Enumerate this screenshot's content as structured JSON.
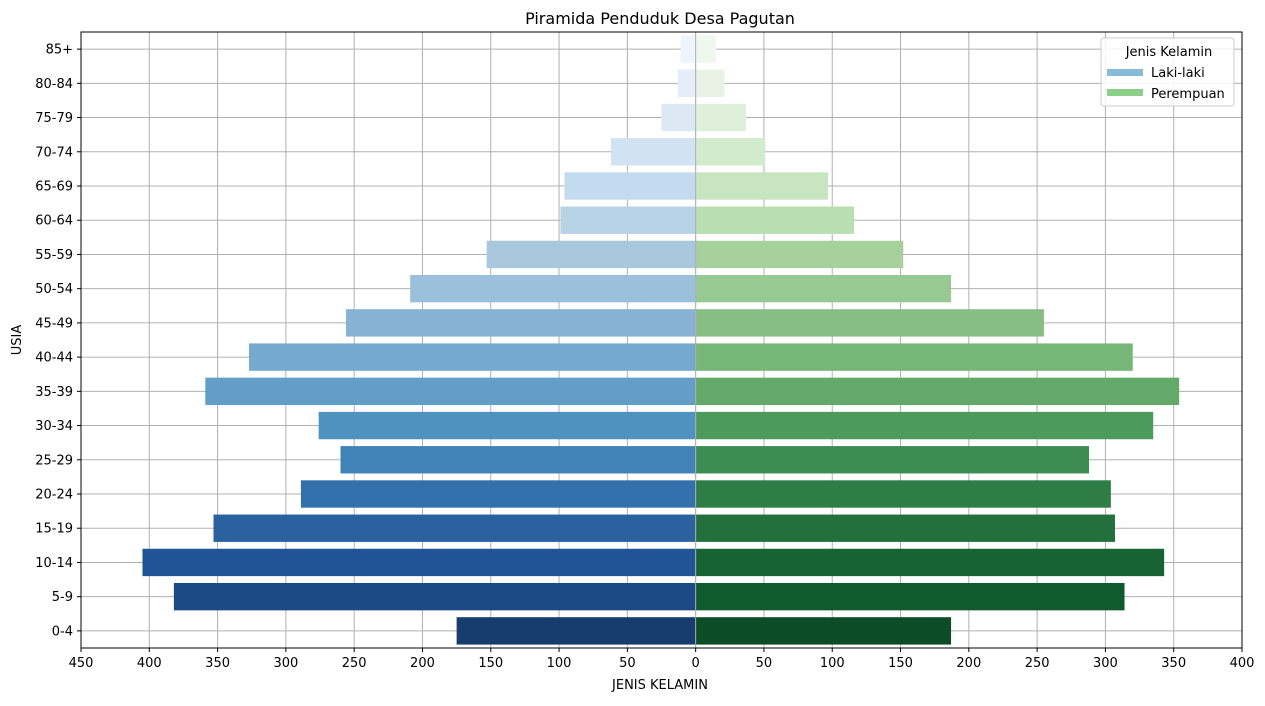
{
  "chart_data": {
    "type": "bar",
    "orientation": "horizontal",
    "title": "Piramida Penduduk Desa Pagutan",
    "xlabel": "JENIS KELAMIN",
    "ylabel": "USIA",
    "xlim": [
      -450,
      400
    ],
    "x_ticks": [
      -450,
      -400,
      -350,
      -300,
      -250,
      -200,
      -150,
      -100,
      -50,
      0,
      50,
      100,
      150,
      200,
      250,
      300,
      350,
      400
    ],
    "x_tick_labels": [
      "450",
      "400",
      "350",
      "300",
      "250",
      "200",
      "150",
      "100",
      "50",
      "0",
      "50",
      "100",
      "150",
      "200",
      "250",
      "300",
      "350",
      "400"
    ],
    "grid": true,
    "legend": {
      "title": "Jenis Kelamin",
      "placement": "top-right",
      "entries": [
        {
          "label": "Laki-laki",
          "color": "#88bbda"
        },
        {
          "label": "Perempuan",
          "color": "#8ccf88"
        }
      ]
    },
    "categories": [
      "85+",
      "80-84",
      "75-79",
      "70-74",
      "65-69",
      "60-64",
      "55-59",
      "50-54",
      "45-49",
      "40-44",
      "35-39",
      "30-34",
      "25-29",
      "20-24",
      "15-19",
      "10-14",
      "5-9",
      "0-4"
    ],
    "series": [
      {
        "name": "Laki-laki",
        "values": [
          -11,
          -13,
          -25,
          -62,
          -96,
          -99,
          -153,
          -209,
          -256,
          -327,
          -359,
          -276,
          -260,
          -289,
          -353,
          -405,
          -382,
          -175
        ],
        "colors": [
          "#edf4fb",
          "#e5eef8",
          "#dce9f5",
          "#d1e2f2",
          "#c4daee",
          "#b8d2e6",
          "#a9c8dd",
          "#9ac0db",
          "#86b3d3",
          "#75a9cf",
          "#629ec7",
          "#4f92c0",
          "#3f83b8",
          "#3371ad",
          "#29629f",
          "#205496",
          "#1a4985",
          "#173d6e"
        ]
      },
      {
        "name": "Perempuan",
        "values": [
          15,
          21,
          37,
          51,
          97,
          116,
          152,
          187,
          255,
          320,
          354,
          335,
          288,
          304,
          307,
          343,
          314,
          187
        ],
        "colors": [
          "#f0f7ee",
          "#e7f2e4",
          "#dff0da",
          "#d2ebcd",
          "#c7e5c1",
          "#b8deb2",
          "#a6d19d",
          "#97c993",
          "#88be85",
          "#76b676",
          "#62a96a",
          "#4c9b5c",
          "#3d8c52",
          "#2e7d46",
          "#23703d",
          "#186334",
          "#105a2f",
          "#0c4c27"
        ]
      }
    ]
  }
}
